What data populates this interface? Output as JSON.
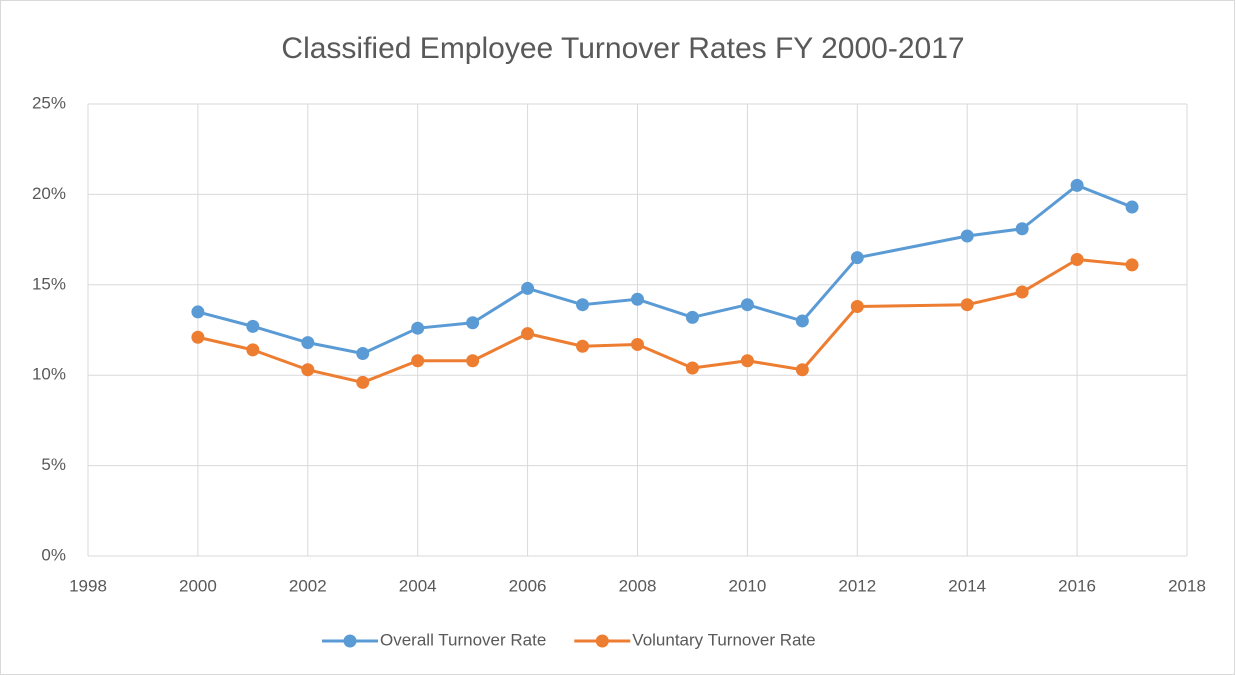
{
  "chart_data": {
    "type": "line",
    "title": "Classified Employee Turnover Rates FY 2000-2017",
    "x": [
      2000,
      2001,
      2002,
      2003,
      2004,
      2005,
      2006,
      2007,
      2008,
      2009,
      2010,
      2011,
      2012,
      2014,
      2015,
      2016,
      2017
    ],
    "series": [
      {
        "name": "Overall Turnover Rate",
        "color": "#5b9bd5",
        "values": [
          13.5,
          12.7,
          11.8,
          11.2,
          12.6,
          12.9,
          14.8,
          13.9,
          14.2,
          13.2,
          13.9,
          13.0,
          16.5,
          17.7,
          18.1,
          20.5,
          19.3
        ]
      },
      {
        "name": "Voluntary Turnover Rate",
        "color": "#ed7d31",
        "values": [
          12.1,
          11.4,
          10.3,
          9.6,
          10.8,
          10.8,
          12.3,
          11.6,
          11.7,
          10.4,
          10.8,
          10.3,
          13.8,
          13.9,
          14.6,
          16.4,
          16.1
        ]
      }
    ],
    "xlim": [
      1998,
      2018
    ],
    "xticks": [
      1998,
      2000,
      2002,
      2004,
      2006,
      2008,
      2010,
      2012,
      2014,
      2016,
      2018
    ],
    "ylim": [
      0,
      25
    ],
    "yticks": [
      {
        "value": 0,
        "label": "0%"
      },
      {
        "value": 5,
        "label": "5%"
      },
      {
        "value": 10,
        "label": "10%"
      },
      {
        "value": 15,
        "label": "15%"
      },
      {
        "value": 20,
        "label": "20%"
      },
      {
        "value": 25,
        "label": "25%"
      }
    ],
    "grid": true,
    "legend": "bottom"
  }
}
